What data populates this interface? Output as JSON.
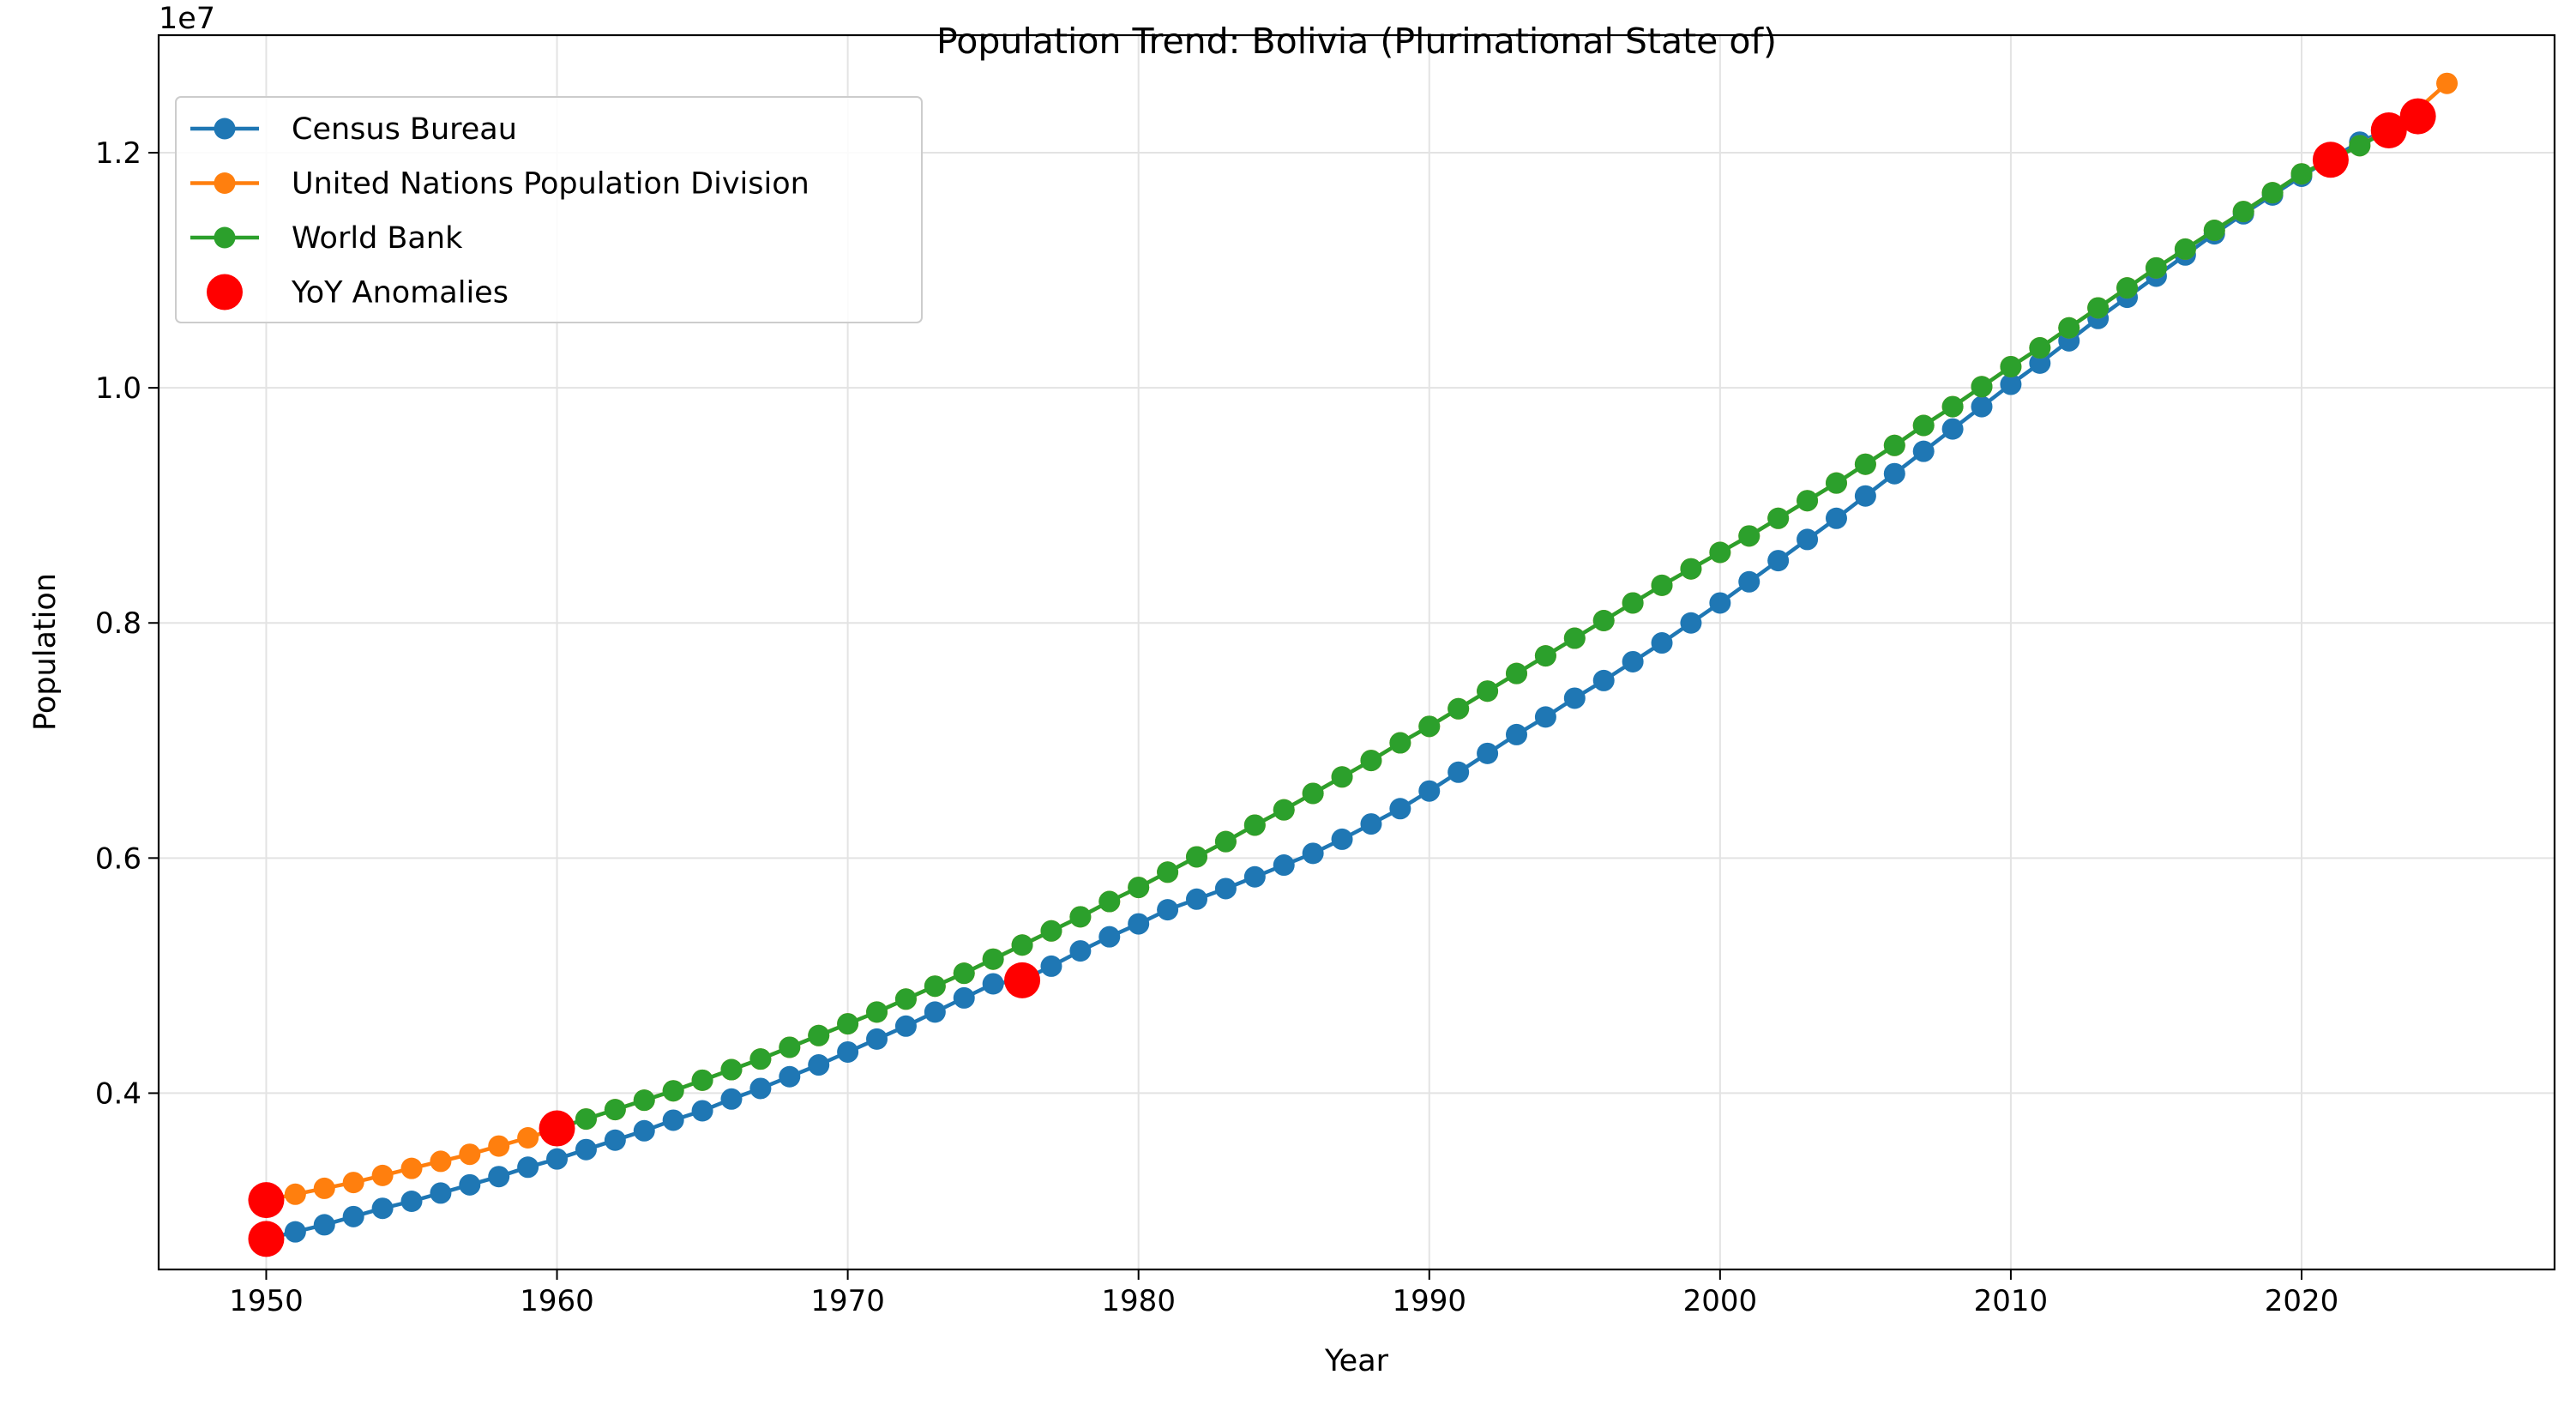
{
  "chart_data": {
    "type": "line",
    "title": "Population Trend: Bolivia (Plurinational State of)",
    "xlabel": "Year",
    "ylabel": "Population",
    "y_offset_label": "1e7",
    "xlim": [
      1946.3,
      2028.7
    ],
    "ylim": [
      2500000,
      13000000
    ],
    "x_ticks": [
      1950,
      1960,
      1970,
      1980,
      1990,
      2000,
      2010,
      2020
    ],
    "x_tick_labels": [
      "1950",
      "1960",
      "1970",
      "1980",
      "1990",
      "2000",
      "2010",
      "2020"
    ],
    "y_ticks": [
      4000000,
      6000000,
      8000000,
      10000000,
      12000000
    ],
    "y_tick_labels": [
      "0.4",
      "0.6",
      "0.8",
      "1.0",
      "1.2"
    ],
    "grid": true,
    "legend_position": "top-left",
    "series": [
      {
        "name": "Census Bureau",
        "color": "#1f77b4",
        "x": [
          1950,
          1951,
          1952,
          1953,
          1954,
          1955,
          1956,
          1957,
          1958,
          1959,
          1960,
          1961,
          1962,
          1963,
          1964,
          1965,
          1966,
          1967,
          1968,
          1969,
          1970,
          1971,
          1972,
          1973,
          1974,
          1975,
          1976,
          1977,
          1978,
          1979,
          1980,
          1981,
          1982,
          1983,
          1984,
          1985,
          1986,
          1987,
          1988,
          1989,
          1990,
          1991,
          1992,
          1993,
          1994,
          1995,
          1996,
          1997,
          1998,
          1999,
          2000,
          2001,
          2002,
          2003,
          2004,
          2005,
          2006,
          2007,
          2008,
          2009,
          2010,
          2011,
          2012,
          2013,
          2014,
          2015,
          2016,
          2017,
          2018,
          2019,
          2020,
          2021,
          2022,
          2023,
          2024
        ],
        "values": [
          2760000,
          2820000,
          2880000,
          2950000,
          3020000,
          3080000,
          3150000,
          3220000,
          3290000,
          3370000,
          3440000,
          3520000,
          3600000,
          3680000,
          3770000,
          3850000,
          3950000,
          4040000,
          4140000,
          4240000,
          4350000,
          4460000,
          4570000,
          4690000,
          4810000,
          4930000,
          4960000,
          5080000,
          5210000,
          5330000,
          5440000,
          5560000,
          5650000,
          5740000,
          5840000,
          5940000,
          6040000,
          6160000,
          6290000,
          6420000,
          6570000,
          6730000,
          6890000,
          7050000,
          7200000,
          7360000,
          7510000,
          7670000,
          7830000,
          8000000,
          8170000,
          8350000,
          8530000,
          8710000,
          8890000,
          9080000,
          9270000,
          9460000,
          9650000,
          9840000,
          10030000,
          10210000,
          10400000,
          10590000,
          10770000,
          10950000,
          11130000,
          11310000,
          11480000,
          11640000,
          11800000,
          11950000,
          12090000,
          12200000,
          12310000
        ]
      },
      {
        "name": "United Nations Population Division",
        "color": "#ff7f0e",
        "x": [
          1950,
          1951,
          1952,
          1953,
          1954,
          1955,
          1956,
          1957,
          1958,
          1959,
          1960,
          1961,
          1962,
          1963,
          1964,
          1965,
          1966,
          1967,
          1968,
          1969,
          1970,
          1971,
          1972,
          1973,
          1974,
          1975,
          1976,
          1977,
          1978,
          1979,
          1980,
          1981,
          1982,
          1983,
          1984,
          1985,
          1986,
          1987,
          1988,
          1989,
          1990,
          1991,
          1992,
          1993,
          1994,
          1995,
          1996,
          1997,
          1998,
          1999,
          2000,
          2001,
          2002,
          2003,
          2004,
          2005,
          2006,
          2007,
          2008,
          2009,
          2010,
          2011,
          2012,
          2013,
          2014,
          2015,
          2016,
          2017,
          2018,
          2019,
          2020,
          2021,
          2022,
          2023,
          2024,
          2025
        ],
        "values": [
          3090000,
          3140000,
          3190000,
          3240000,
          3300000,
          3360000,
          3420000,
          3480000,
          3550000,
          3620000,
          3700000,
          3780000,
          3860000,
          3940000,
          4020000,
          4110000,
          4200000,
          4290000,
          4390000,
          4490000,
          4590000,
          4690000,
          4800000,
          4910000,
          5020000,
          5140000,
          5260000,
          5380000,
          5500000,
          5630000,
          5750000,
          5880000,
          6010000,
          6140000,
          6280000,
          6410000,
          6550000,
          6690000,
          6830000,
          6980000,
          7120000,
          7270000,
          7420000,
          7570000,
          7720000,
          7870000,
          8020000,
          8170000,
          8320000,
          8460000,
          8600000,
          8740000,
          8890000,
          9040000,
          9190000,
          9350000,
          9510000,
          9680000,
          9840000,
          10010000,
          10180000,
          10340000,
          10510000,
          10680000,
          10850000,
          11020000,
          11180000,
          11340000,
          11500000,
          11660000,
          11820000,
          11940000,
          12060000,
          12200000,
          12370000,
          12590000
        ]
      },
      {
        "name": "World Bank",
        "color": "#2ca02c",
        "x": [
          1960,
          1961,
          1962,
          1963,
          1964,
          1965,
          1966,
          1967,
          1968,
          1969,
          1970,
          1971,
          1972,
          1973,
          1974,
          1975,
          1976,
          1977,
          1978,
          1979,
          1980,
          1981,
          1982,
          1983,
          1984,
          1985,
          1986,
          1987,
          1988,
          1989,
          1990,
          1991,
          1992,
          1993,
          1994,
          1995,
          1996,
          1997,
          1998,
          1999,
          2000,
          2001,
          2002,
          2003,
          2004,
          2005,
          2006,
          2007,
          2008,
          2009,
          2010,
          2011,
          2012,
          2013,
          2014,
          2015,
          2016,
          2017,
          2018,
          2019,
          2020,
          2021,
          2022,
          2023
        ],
        "values": [
          3700000,
          3780000,
          3860000,
          3940000,
          4020000,
          4110000,
          4200000,
          4290000,
          4390000,
          4490000,
          4590000,
          4690000,
          4800000,
          4910000,
          5020000,
          5140000,
          5260000,
          5380000,
          5500000,
          5630000,
          5750000,
          5880000,
          6010000,
          6140000,
          6280000,
          6410000,
          6550000,
          6690000,
          6830000,
          6980000,
          7120000,
          7270000,
          7420000,
          7570000,
          7720000,
          7870000,
          8020000,
          8170000,
          8320000,
          8460000,
          8600000,
          8740000,
          8890000,
          9040000,
          9190000,
          9350000,
          9510000,
          9680000,
          9840000,
          10010000,
          10180000,
          10340000,
          10510000,
          10680000,
          10850000,
          11020000,
          11180000,
          11340000,
          11500000,
          11660000,
          11820000,
          11940000,
          12060000,
          12190000
        ]
      }
    ],
    "anomalies": {
      "name": "YoY Anomalies",
      "color": "#ff0000",
      "points": [
        {
          "x": 1950,
          "y": 3090000
        },
        {
          "x": 1950,
          "y": 2760000
        },
        {
          "x": 1960,
          "y": 3700000
        },
        {
          "x": 1976,
          "y": 4960000
        },
        {
          "x": 2021,
          "y": 11940000
        },
        {
          "x": 2023,
          "y": 12190000
        },
        {
          "x": 2024,
          "y": 12310000
        }
      ]
    }
  }
}
